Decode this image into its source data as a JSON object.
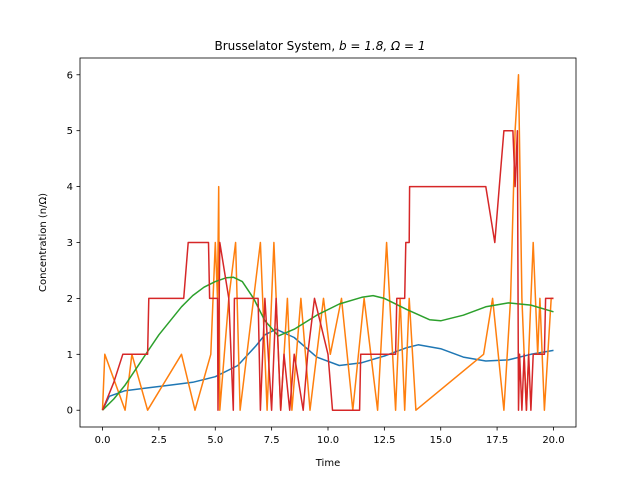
{
  "chart_data": {
    "type": "line",
    "title_text": "Brusselator System, ",
    "title_math": "b = 1.8, Ω = 1",
    "xlabel": "Time",
    "ylabel": "Concentration (n/Ω)",
    "xlim": [
      -1.0,
      21.0
    ],
    "ylim": [
      -0.3,
      6.3
    ],
    "xticks": [
      "0.0",
      "2.5",
      "5.0",
      "7.5",
      "10.0",
      "12.5",
      "15.0",
      "17.5",
      "20.0"
    ],
    "xtick_values": [
      0,
      2.5,
      5,
      7.5,
      10,
      12.5,
      15,
      17.5,
      20
    ],
    "yticks": [
      "0",
      "1",
      "2",
      "3",
      "4",
      "5",
      "6"
    ],
    "ytick_values": [
      0,
      1,
      2,
      3,
      4,
      5,
      6
    ],
    "grid": false,
    "series": [
      {
        "color": "#1f77b4",
        "points": [
          [
            0,
            0
          ],
          [
            0.3,
            0.25
          ],
          [
            1,
            0.35
          ],
          [
            2,
            0.4
          ],
          [
            3,
            0.45
          ],
          [
            4,
            0.5
          ],
          [
            5,
            0.6
          ],
          [
            6,
            0.8
          ],
          [
            6.8,
            1.15
          ],
          [
            7.2,
            1.35
          ],
          [
            7.7,
            1.45
          ],
          [
            8.5,
            1.3
          ],
          [
            9.5,
            0.95
          ],
          [
            10.5,
            0.8
          ],
          [
            11.5,
            0.85
          ],
          [
            12.5,
            0.97
          ],
          [
            13.5,
            1.12
          ],
          [
            14,
            1.17
          ],
          [
            15,
            1.1
          ],
          [
            16,
            0.95
          ],
          [
            17,
            0.88
          ],
          [
            18,
            0.9
          ],
          [
            19,
            1.0
          ],
          [
            20,
            1.07
          ]
        ]
      },
      {
        "color": "#ff7f0e",
        "points": [
          [
            0,
            0
          ],
          [
            0.1,
            1
          ],
          [
            1,
            0
          ],
          [
            1.3,
            1
          ],
          [
            2,
            0
          ],
          [
            3.5,
            1
          ],
          [
            4.1,
            0
          ],
          [
            4.8,
            1
          ],
          [
            5.0,
            3
          ],
          [
            5.1,
            2
          ],
          [
            5.15,
            4
          ],
          [
            5.2,
            0
          ],
          [
            5.6,
            2
          ],
          [
            5.9,
            3
          ],
          [
            6.1,
            0
          ],
          [
            7.0,
            3
          ],
          [
            7.3,
            0
          ],
          [
            7.6,
            3
          ],
          [
            7.9,
            0
          ],
          [
            8.2,
            2
          ],
          [
            8.4,
            0
          ],
          [
            8.8,
            2
          ],
          [
            9.2,
            0
          ],
          [
            9.8,
            2
          ],
          [
            10.1,
            1
          ],
          [
            10.6,
            2
          ],
          [
            11.1,
            0
          ],
          [
            11.6,
            2
          ],
          [
            12.2,
            0
          ],
          [
            12.6,
            3
          ],
          [
            13.0,
            0
          ],
          [
            13.2,
            2
          ],
          [
            13.4,
            0
          ],
          [
            13.6,
            2
          ],
          [
            13.9,
            0
          ],
          [
            16.9,
            1
          ],
          [
            17.3,
            2
          ],
          [
            17.8,
            0
          ],
          [
            18.1,
            2
          ],
          [
            18.3,
            5
          ],
          [
            18.45,
            6
          ],
          [
            18.6,
            2
          ],
          [
            18.8,
            0
          ],
          [
            19.1,
            3
          ],
          [
            19.3,
            1
          ],
          [
            19.4,
            2
          ],
          [
            19.6,
            0
          ],
          [
            19.9,
            2
          ],
          [
            20.0,
            2
          ]
        ]
      },
      {
        "color": "#2ca02c",
        "points": [
          [
            0,
            0
          ],
          [
            0.5,
            0.2
          ],
          [
            1,
            0.45
          ],
          [
            1.5,
            0.75
          ],
          [
            2,
            1.05
          ],
          [
            2.5,
            1.35
          ],
          [
            3,
            1.6
          ],
          [
            3.5,
            1.85
          ],
          [
            4,
            2.05
          ],
          [
            4.5,
            2.2
          ],
          [
            5,
            2.3
          ],
          [
            5.5,
            2.37
          ],
          [
            5.8,
            2.38
          ],
          [
            6.2,
            2.3
          ],
          [
            6.7,
            2.0
          ],
          [
            7.2,
            1.6
          ],
          [
            7.8,
            1.33
          ],
          [
            8.5,
            1.45
          ],
          [
            9.5,
            1.7
          ],
          [
            10.5,
            1.9
          ],
          [
            11.5,
            2.02
          ],
          [
            12,
            2.05
          ],
          [
            12.5,
            2.0
          ],
          [
            13.5,
            1.8
          ],
          [
            14.5,
            1.62
          ],
          [
            15,
            1.6
          ],
          [
            16,
            1.7
          ],
          [
            17,
            1.85
          ],
          [
            18,
            1.92
          ],
          [
            19,
            1.88
          ],
          [
            20,
            1.76
          ]
        ]
      },
      {
        "color": "#d62728",
        "points": [
          [
            0,
            0
          ],
          [
            0.5,
            0.5
          ],
          [
            0.9,
            1
          ],
          [
            2.0,
            1
          ],
          [
            2.05,
            2
          ],
          [
            3.6,
            2
          ],
          [
            3.8,
            3
          ],
          [
            4.7,
            3
          ],
          [
            4.75,
            2
          ],
          [
            5.1,
            2
          ],
          [
            5.12,
            0
          ],
          [
            5.2,
            3
          ],
          [
            5.6,
            2
          ],
          [
            5.8,
            0
          ],
          [
            5.85,
            2
          ],
          [
            6.9,
            2
          ],
          [
            7.0,
            0
          ],
          [
            7.2,
            2
          ],
          [
            7.5,
            0
          ],
          [
            7.7,
            2
          ],
          [
            7.9,
            0
          ],
          [
            8.05,
            1
          ],
          [
            8.3,
            0
          ],
          [
            8.5,
            1
          ],
          [
            8.9,
            0
          ],
          [
            9.1,
            1
          ],
          [
            9.4,
            2
          ],
          [
            10.0,
            1
          ],
          [
            10.2,
            0
          ],
          [
            11.4,
            0
          ],
          [
            11.45,
            1
          ],
          [
            13.0,
            1
          ],
          [
            13.05,
            2
          ],
          [
            13.4,
            2
          ],
          [
            13.45,
            3
          ],
          [
            13.6,
            3
          ],
          [
            13.62,
            4
          ],
          [
            17.0,
            4
          ],
          [
            17.4,
            3
          ],
          [
            17.6,
            4
          ],
          [
            17.8,
            5
          ],
          [
            18.2,
            5
          ],
          [
            18.3,
            4
          ],
          [
            18.4,
            5
          ],
          [
            18.45,
            0
          ],
          [
            18.5,
            1
          ],
          [
            18.6,
            0
          ],
          [
            18.7,
            1
          ],
          [
            18.8,
            0
          ],
          [
            18.9,
            1
          ],
          [
            19.0,
            0
          ],
          [
            19.1,
            1
          ],
          [
            19.6,
            1
          ],
          [
            19.65,
            2
          ],
          [
            20.0,
            2
          ]
        ]
      }
    ]
  }
}
